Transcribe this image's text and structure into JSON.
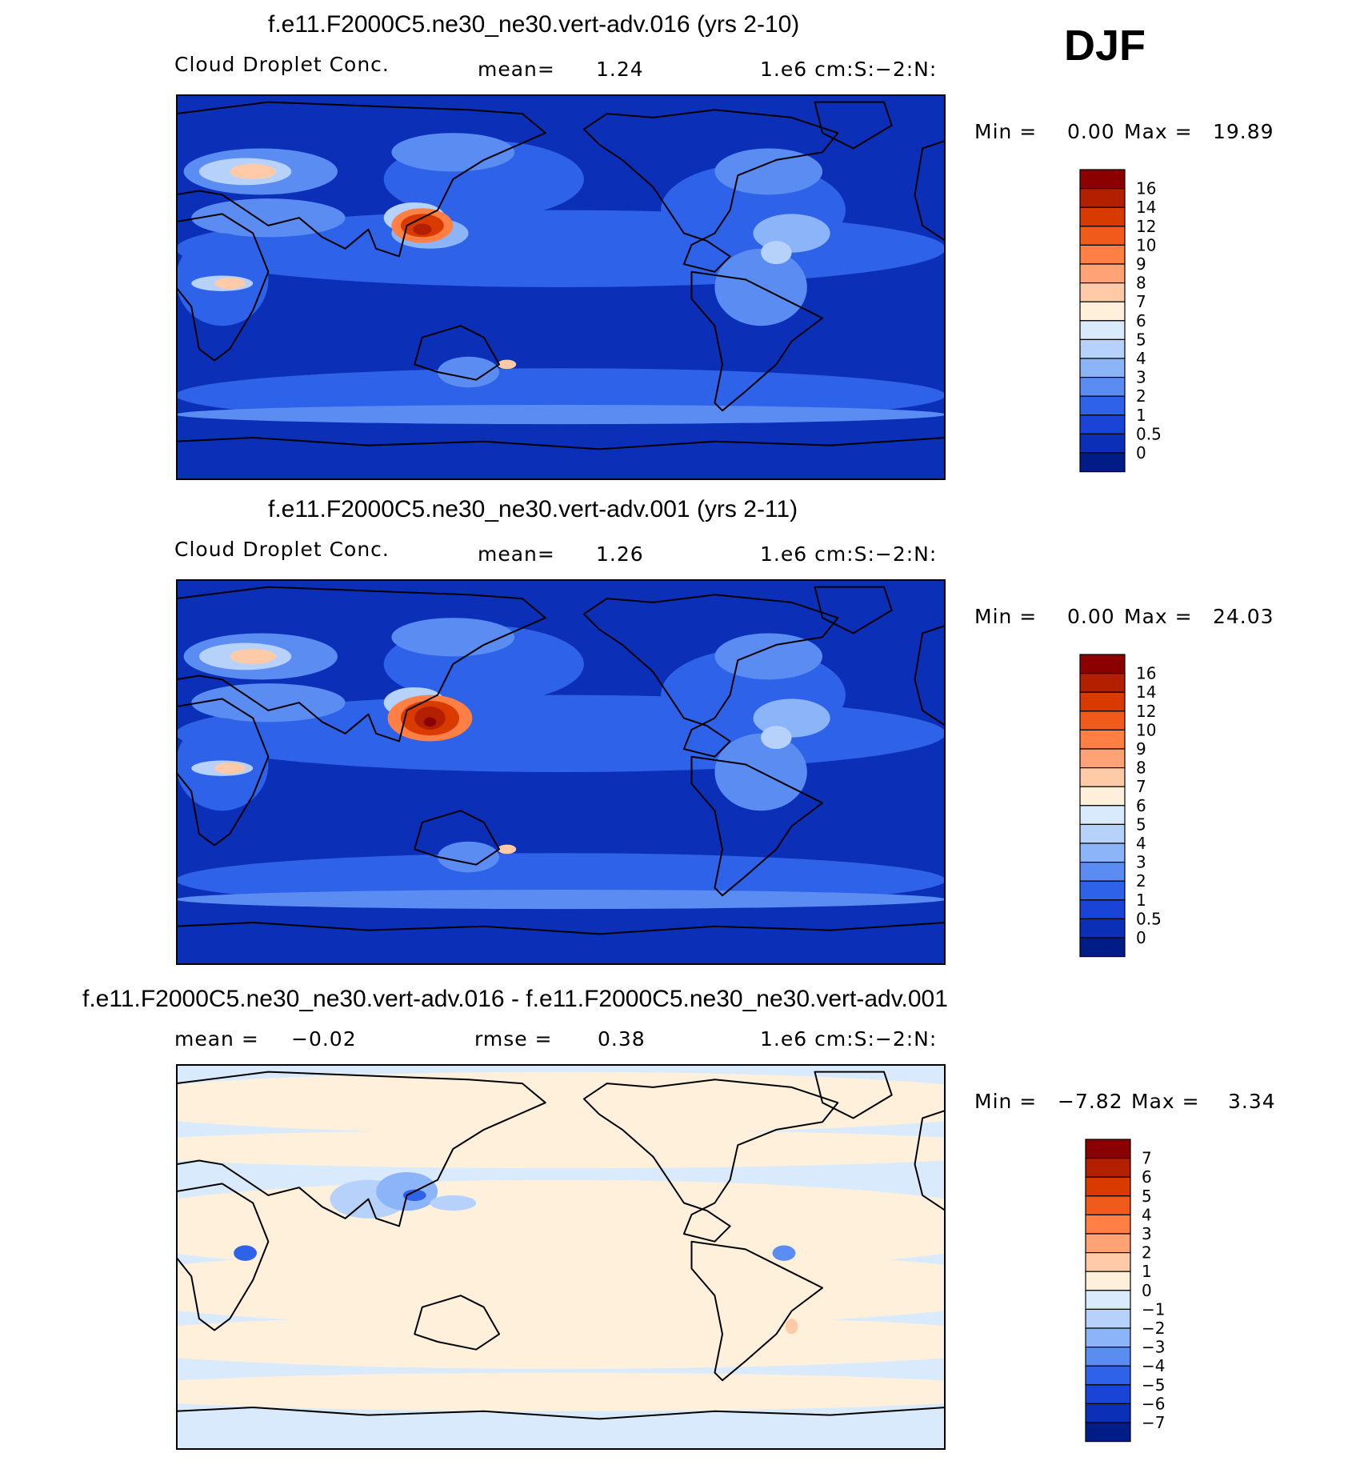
{
  "season": "DJF",
  "chart_data": [
    {
      "type": "heatmap",
      "title": "f.e11.F2000C5.ne30_ne30.vert-adv.016 (yrs 2-10)",
      "variable": "Cloud Droplet Conc.",
      "mean_label": "mean=",
      "mean": "1.24",
      "units": "1.e6 cm:S:−2:N:",
      "min_label": "Min =",
      "min": "0.00",
      "max_label": "Max =",
      "max": "19.89",
      "colorbar_levels": [
        "16",
        "14",
        "12",
        "10",
        "9",
        "8",
        "7",
        "6",
        "5",
        "4",
        "3",
        "2",
        "1",
        "0.5",
        "0"
      ],
      "colorbar_colors": [
        "#8b0000",
        "#b22000",
        "#d83a00",
        "#f05a1a",
        "#ff7f45",
        "#ffa276",
        "#ffcaa8",
        "#fff0dc",
        "#d8eafc",
        "#b6d2fb",
        "#8cb4f8",
        "#5a8cf2",
        "#2e62e8",
        "#1a44d8",
        "#0c2fb8",
        "#001d87"
      ],
      "map": "diverging-blue-field",
      "projection": "global cylindrical, Pacific-centred"
    },
    {
      "type": "heatmap",
      "title": "f.e11.F2000C5.ne30_ne30.vert-adv.001 (yrs 2-11)",
      "variable": "Cloud Droplet Conc.",
      "mean_label": "mean=",
      "mean": "1.26",
      "units": "1.e6 cm:S:−2:N:",
      "min_label": "Min =",
      "min": "0.00",
      "max_label": "Max =",
      "max": "24.03",
      "colorbar_levels": [
        "16",
        "14",
        "12",
        "10",
        "9",
        "8",
        "7",
        "6",
        "5",
        "4",
        "3",
        "2",
        "1",
        "0.5",
        "0"
      ],
      "colorbar_colors": [
        "#8b0000",
        "#b22000",
        "#d83a00",
        "#f05a1a",
        "#ff7f45",
        "#ffa276",
        "#ffcaa8",
        "#fff0dc",
        "#d8eafc",
        "#b6d2fb",
        "#8cb4f8",
        "#5a8cf2",
        "#2e62e8",
        "#1a44d8",
        "#0c2fb8",
        "#001d87"
      ],
      "map": "diverging-blue-field",
      "projection": "global cylindrical, Pacific-centred"
    },
    {
      "type": "heatmap",
      "title": "f.e11.F2000C5.ne30_ne30.vert-adv.016 - f.e11.F2000C5.ne30_ne30.vert-adv.001",
      "mean_label": "mean =",
      "mean": "−0.02",
      "rmse_label": "rmse =",
      "rmse": "0.38",
      "units": "1.e6 cm:S:−2:N:",
      "min_label": "Min =",
      "min": "−7.82",
      "max_label": "Max =",
      "max": "3.34",
      "colorbar_levels": [
        "7",
        "6",
        "5",
        "4",
        "3",
        "2",
        "1",
        "0",
        "−1",
        "−2",
        "−3",
        "−4",
        "−5",
        "−6",
        "−7"
      ],
      "colorbar_colors": [
        "#8b0000",
        "#b22000",
        "#d83a00",
        "#f05a1a",
        "#ff7f45",
        "#ffa276",
        "#ffcaa8",
        "#fff0dc",
        "#d8eafc",
        "#b6d2fb",
        "#8cb4f8",
        "#5a8cf2",
        "#2e62e8",
        "#1a44d8",
        "#0c2fb8",
        "#001d87"
      ],
      "map": "difference-field",
      "projection": "global cylindrical, Pacific-centred"
    }
  ]
}
